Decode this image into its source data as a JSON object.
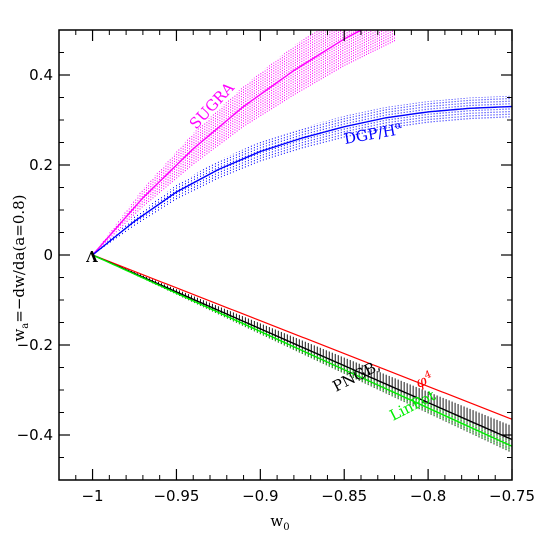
{
  "chart_data": {
    "type": "line",
    "xlabel": "w",
    "xlabel_sub": "0",
    "ylabel": "w",
    "ylabel_sub": "a",
    "ylabel_rest": "=−dw/da(a=0.8)",
    "xlim": [
      -1.02,
      -0.75
    ],
    "ylim": [
      -0.5,
      0.5
    ],
    "xticks": [
      -1,
      -0.95,
      -0.9,
      -0.85,
      -0.8,
      -0.75
    ],
    "xtick_labels": [
      "−1",
      "−0.95",
      "−0.9",
      "−0.85",
      "−0.8",
      "−0.75"
    ],
    "yticks": [
      -0.4,
      -0.2,
      0,
      0.2,
      0.4
    ],
    "ytick_labels": [
      "−0.4",
      "−0.2",
      "0",
      "0.2",
      "0.4"
    ],
    "grid": false,
    "series": [
      {
        "name": "SUGRA",
        "color": "#ff00ff",
        "x": [
          -1.0,
          -0.97,
          -0.94,
          -0.91,
          -0.88,
          -0.85,
          -0.82
        ],
        "y": [
          0.0,
          0.127,
          0.236,
          0.33,
          0.41,
          0.48,
          0.54
        ],
        "band_width": [
          0.0,
          0.02,
          0.035,
          0.045,
          0.055,
          0.06,
          0.065
        ]
      },
      {
        "name": "DGP/Hα",
        "color": "#0000ff",
        "x": [
          -1.0,
          -0.975,
          -0.95,
          -0.925,
          -0.9,
          -0.875,
          -0.85,
          -0.825,
          -0.8,
          -0.775,
          -0.75
        ],
        "y": [
          0.0,
          0.075,
          0.14,
          0.19,
          0.23,
          0.26,
          0.285,
          0.305,
          0.318,
          0.326,
          0.33
        ],
        "band_width": [
          0.0,
          0.01,
          0.016,
          0.02,
          0.022,
          0.023,
          0.024,
          0.024,
          0.024,
          0.024,
          0.024
        ]
      },
      {
        "name": "φ⁴",
        "color": "#ff0000",
        "x": [
          -1.0,
          -0.75
        ],
        "y": [
          0.0,
          -0.365
        ]
      },
      {
        "name": "PNGB,",
        "color": "#000000",
        "x": [
          -1.0,
          -0.75
        ],
        "y": [
          0.0,
          -0.41
        ],
        "band_width": [
          0.0,
          0.03
        ]
      },
      {
        "name": "LinPot",
        "color": "#00ee00",
        "x": [
          -1.0,
          -0.75
        ],
        "y": [
          0.0,
          -0.425
        ],
        "band_width": [
          0.0,
          0.012
        ]
      }
    ],
    "annotations": [
      {
        "text": "SUGRA",
        "color": "#ff00ff"
      },
      {
        "text": "DGP/H",
        "sup": "α",
        "color": "#0000ff"
      },
      {
        "text": "φ",
        "sup": "4",
        "color": "#ff0000"
      },
      {
        "text": "PNGB,",
        "color": "#000000"
      },
      {
        "text": "LinPot",
        "color": "#00ee00"
      }
    ],
    "markers": [
      {
        "text": "Λ",
        "x": -1.0,
        "y": 0.0,
        "color": "#000000"
      }
    ]
  }
}
